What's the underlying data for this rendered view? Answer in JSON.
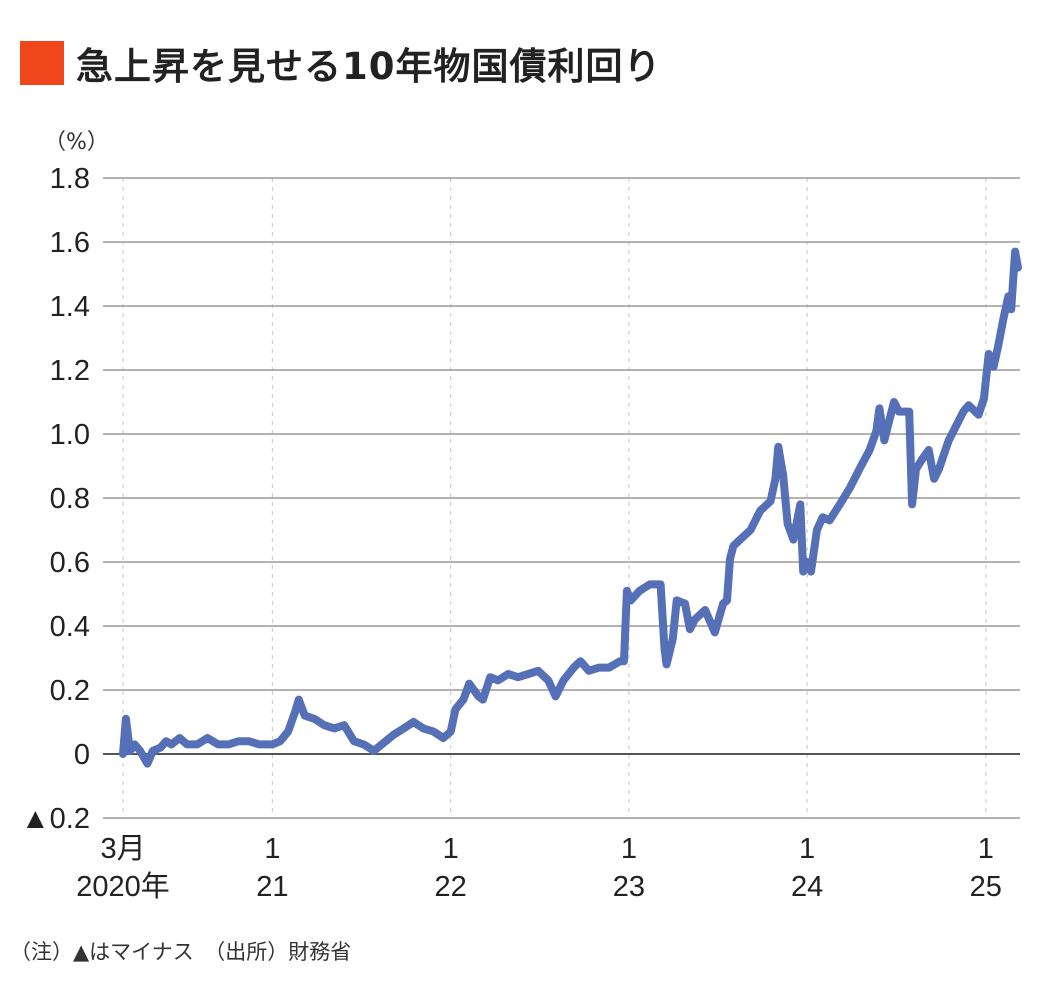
{
  "title": "急上昇を見せる10年物国債利回り",
  "accent_color": "#f0461c",
  "line_color": "#5670b8",
  "note": "（注）▲はマイナス　（出所）財務省",
  "chart_data": {
    "type": "line",
    "title": "急上昇を見せる10年物国債利回り",
    "ylabel": "（%）",
    "xlabel": "",
    "ylim": [
      -0.2,
      1.8
    ],
    "xlim": [
      "2020-01-20",
      "2025-03-12"
    ],
    "grid": {
      "horizontal": "solid",
      "vertical": "dashed"
    },
    "yticks": [
      {
        "value": 1.8,
        "label": "1.8"
      },
      {
        "value": 1.6,
        "label": "1.6"
      },
      {
        "value": 1.4,
        "label": "1.4"
      },
      {
        "value": 1.2,
        "label": "1.2"
      },
      {
        "value": 1.0,
        "label": "1.0"
      },
      {
        "value": 0.8,
        "label": "0.8"
      },
      {
        "value": 0.6,
        "label": "0.6"
      },
      {
        "value": 0.4,
        "label": "0.4"
      },
      {
        "value": 0.2,
        "label": "0.2"
      },
      {
        "value": 0,
        "label": "0"
      },
      {
        "value": -0.2,
        "label": "▲0.2"
      }
    ],
    "xticks": [
      {
        "date": "2020-03-01",
        "line1": "3月",
        "line2": "2020年"
      },
      {
        "date": "2021-01-01",
        "line1": "1",
        "line2": "21"
      },
      {
        "date": "2022-01-01",
        "line1": "1",
        "line2": "22"
      },
      {
        "date": "2023-01-01",
        "line1": "1",
        "line2": "23"
      },
      {
        "date": "2024-01-01",
        "line1": "1",
        "line2": "24"
      },
      {
        "date": "2025-01-01",
        "line1": "1",
        "line2": "25"
      }
    ],
    "series": [
      {
        "x": [
          "2020-03-01",
          "2020-03-07",
          "2020-03-15",
          "2020-03-25",
          "2020-04-05",
          "2020-04-20",
          "2020-05-01",
          "2020-05-17",
          "2020-05-28",
          "2020-06-08",
          "2020-06-25",
          "2020-07-10",
          "2020-07-31",
          "2020-08-21",
          "2020-09-12",
          "2020-10-03",
          "2020-10-24",
          "2020-11-14",
          "2020-12-05",
          "2021-01-01",
          "2021-01-17",
          "2021-02-02",
          "2021-02-16",
          "2021-02-24",
          "2021-03-08",
          "2021-03-28",
          "2021-04-17",
          "2021-05-08",
          "2021-05-28",
          "2021-06-17",
          "2021-07-07",
          "2021-07-28",
          "2021-08-13",
          "2021-09-06",
          "2021-09-27",
          "2021-10-17",
          "2021-11-06",
          "2021-11-27",
          "2021-12-17",
          "2022-01-01",
          "2022-01-11",
          "2022-01-27",
          "2022-02-08",
          "2022-02-27",
          "2022-03-08",
          "2022-03-23",
          "2022-04-08",
          "2022-04-29",
          "2022-05-19",
          "2022-06-09",
          "2022-06-29",
          "2022-07-20",
          "2022-08-04",
          "2022-08-20",
          "2022-09-10",
          "2022-09-24",
          "2022-10-11",
          "2022-11-01",
          "2022-11-21",
          "2022-12-14",
          "2022-12-22",
          "2022-12-28",
          "2023-01-05",
          "2023-01-23",
          "2023-02-13",
          "2023-03-07",
          "2023-03-15",
          "2023-03-19",
          "2023-04-01",
          "2023-04-09",
          "2023-04-26",
          "2023-05-06",
          "2023-05-16",
          "2023-06-06",
          "2023-06-26",
          "2023-07-13",
          "2023-07-21",
          "2023-07-27",
          "2023-08-03",
          "2023-08-17",
          "2023-09-07",
          "2023-09-27",
          "2023-10-18",
          "2023-10-28",
          "2023-11-03",
          "2023-11-13",
          "2023-11-22",
          "2023-12-04",
          "2023-12-18",
          "2023-12-24",
          "2024-01-01",
          "2024-01-09",
          "2024-01-21",
          "2024-02-02",
          "2024-02-16",
          "2024-03-08",
          "2024-03-28",
          "2024-04-17",
          "2024-05-08",
          "2024-05-22",
          "2024-05-28",
          "2024-06-07",
          "2024-06-17",
          "2024-06-27",
          "2024-07-07",
          "2024-07-28",
          "2024-08-03",
          "2024-08-11",
          "2024-08-23",
          "2024-09-06",
          "2024-09-17",
          "2024-09-27",
          "2024-10-17",
          "2024-11-06",
          "2024-11-16",
          "2024-11-27",
          "2024-12-17",
          "2024-12-28",
          "2025-01-07",
          "2025-01-17",
          "2025-01-27",
          "2025-02-06",
          "2025-02-16",
          "2025-02-22",
          "2025-03-02",
          "2025-03-08"
        ],
        "y": [
          0.0,
          0.11,
          0.01,
          0.03,
          0.01,
          -0.03,
          0.01,
          0.02,
          0.04,
          0.03,
          0.05,
          0.03,
          0.03,
          0.05,
          0.03,
          0.03,
          0.04,
          0.04,
          0.03,
          0.03,
          0.04,
          0.07,
          0.13,
          0.17,
          0.12,
          0.11,
          0.09,
          0.08,
          0.09,
          0.04,
          0.03,
          0.01,
          0.03,
          0.06,
          0.08,
          0.1,
          0.08,
          0.07,
          0.05,
          0.07,
          0.14,
          0.17,
          0.22,
          0.18,
          0.17,
          0.24,
          0.23,
          0.25,
          0.24,
          0.25,
          0.26,
          0.23,
          0.18,
          0.23,
          0.27,
          0.29,
          0.26,
          0.27,
          0.27,
          0.29,
          0.29,
          0.51,
          0.48,
          0.51,
          0.53,
          0.53,
          0.33,
          0.28,
          0.36,
          0.48,
          0.47,
          0.39,
          0.42,
          0.45,
          0.38,
          0.47,
          0.48,
          0.61,
          0.65,
          0.67,
          0.7,
          0.76,
          0.79,
          0.86,
          0.96,
          0.87,
          0.72,
          0.67,
          0.78,
          0.57,
          0.6,
          0.57,
          0.7,
          0.74,
          0.73,
          0.78,
          0.83,
          0.89,
          0.95,
          1.01,
          1.08,
          0.98,
          1.04,
          1.1,
          1.07,
          1.07,
          0.78,
          0.89,
          0.92,
          0.95,
          0.86,
          0.89,
          0.98,
          1.04,
          1.07,
          1.09,
          1.06,
          1.11,
          1.25,
          1.21,
          1.28,
          1.36,
          1.43,
          1.39,
          1.57,
          1.52
        ]
      }
    ]
  }
}
